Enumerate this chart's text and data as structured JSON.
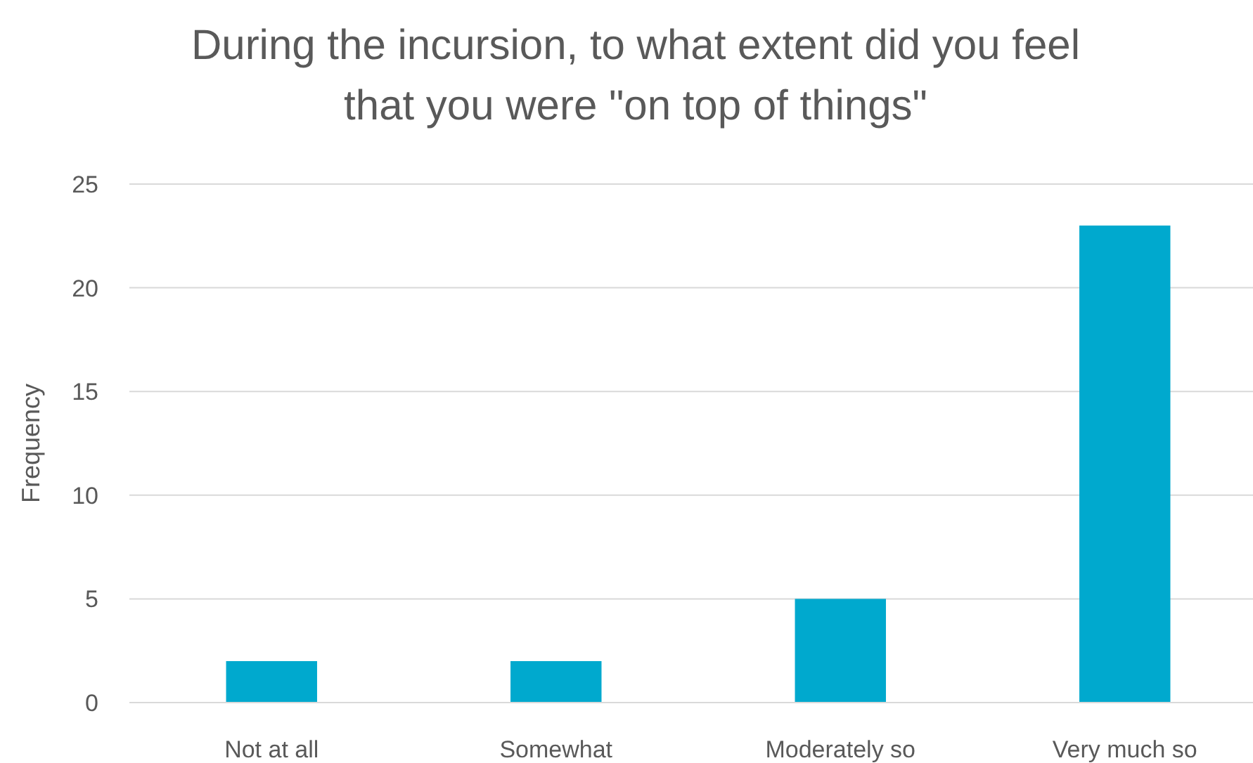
{
  "chart_data": {
    "type": "bar",
    "title": "During the incursion, to what extent did you feel that you were \"on top of things\"",
    "ylabel": "Frequency",
    "categories": [
      "Not at all",
      "Somewhat",
      "Moderately so",
      "Very much so"
    ],
    "values": [
      2,
      2,
      5,
      23
    ],
    "color": "#00a9ce",
    "ylim": [
      0,
      25
    ],
    "yticks": [
      0,
      5,
      10,
      15,
      20,
      25
    ],
    "grid": "y"
  }
}
